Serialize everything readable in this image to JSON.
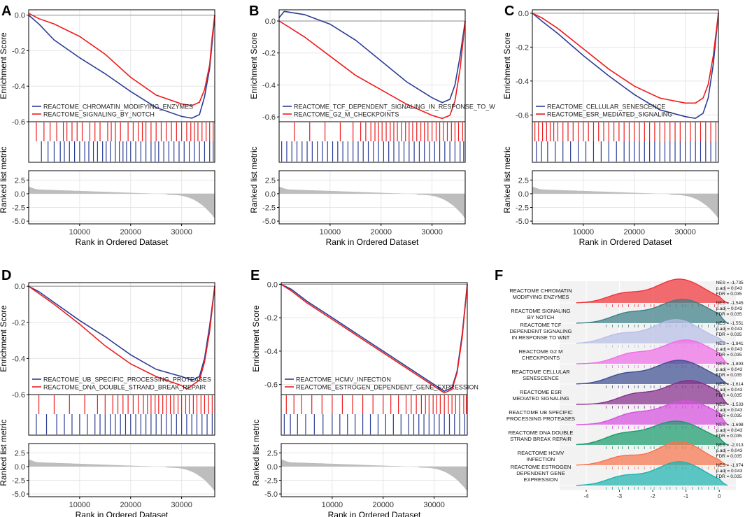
{
  "figure": {
    "colors": {
      "red": "#ee1c1c",
      "blue": "#2b3d96",
      "grid": "#e6e6e6",
      "metric": "#bdbdbd",
      "zero": "#a0a0a0"
    }
  },
  "chart_data": [
    {
      "panel": "A",
      "type": "line",
      "ylabel": "Enrichment Score",
      "xlabel": "Rank in Ordered Dataset",
      "metric_ylabel": "Ranked list metric",
      "ylim": [
        -0.6,
        0.03
      ],
      "yticks": [
        0.0,
        -0.2,
        -0.4,
        -0.6
      ],
      "ytick_labels": [
        "0.0",
        "-0.2",
        "-0.4",
        "-0.6"
      ],
      "xlim": [
        0,
        36500
      ],
      "xticks": [
        10000,
        20000,
        30000
      ],
      "xtick_labels": [
        "10000",
        "20000",
        "30000"
      ],
      "metric_yticks": [
        2.5,
        0.0,
        -2.5,
        -5.0
      ],
      "metric_ytick_labels": [
        "2.5",
        "0.0",
        "-2.5",
        "-5.0"
      ],
      "series": [
        {
          "name": "REACTOME_CHROMATIN_MODIFYING_ENZYMES",
          "color": "blue",
          "x": [
            0,
            2000,
            5000,
            10000,
            15000,
            20000,
            25000,
            30000,
            32000,
            33500,
            34500,
            35500,
            36000,
            36500
          ],
          "y": [
            0.0,
            -0.05,
            -0.14,
            -0.24,
            -0.33,
            -0.43,
            -0.52,
            -0.57,
            -0.58,
            -0.56,
            -0.46,
            -0.3,
            -0.15,
            0.0
          ]
        },
        {
          "name": "REACTOME_SIGNALING_BY_NOTCH",
          "color": "red",
          "x": [
            0,
            2000,
            5000,
            10000,
            15000,
            20000,
            25000,
            30000,
            32000,
            33500,
            34500,
            35500,
            36000,
            36500
          ],
          "y": [
            0.01,
            -0.02,
            -0.05,
            -0.12,
            -0.22,
            -0.35,
            -0.45,
            -0.5,
            -0.51,
            -0.49,
            -0.42,
            -0.28,
            -0.12,
            0.0
          ]
        }
      ],
      "hits_red": [
        1500,
        3000,
        4200,
        5500,
        6800,
        7500,
        8500,
        9500,
        10500,
        12000,
        13000,
        14000,
        15500,
        16200,
        17000,
        18000,
        19500,
        20500,
        21500,
        22300,
        23000,
        24000,
        25000,
        26000,
        27000,
        28000,
        29000,
        30000,
        31000,
        31800,
        32500,
        33200,
        34000,
        34800,
        35500,
        36200
      ],
      "hits_blue": [
        2500,
        3800,
        5000,
        6200,
        7000,
        8000,
        9000,
        10000,
        11000,
        11800,
        12700,
        13500,
        14500,
        15200,
        16000,
        17000,
        17800,
        18500,
        19200,
        20000,
        21000,
        22000,
        23000,
        24000,
        24800,
        25500,
        26500,
        27500,
        28500,
        29500,
        30500,
        31500,
        32500,
        33500,
        34500,
        35500,
        36200
      ]
    },
    {
      "panel": "B",
      "type": "line",
      "ylabel": "Enrichment Score",
      "xlabel": "Rank in Ordered Dataset",
      "metric_ylabel": "Ranked list metric",
      "ylim": [
        -0.63,
        0.07
      ],
      "yticks": [
        0.0,
        -0.2,
        -0.4,
        -0.6
      ],
      "ytick_labels": [
        "0.0",
        "-0.2",
        "-0.4",
        "-0.6"
      ],
      "xlim": [
        0,
        36500
      ],
      "xticks": [
        10000,
        20000,
        30000
      ],
      "xtick_labels": [
        "10000",
        "20000",
        "30000"
      ],
      "metric_yticks": [
        2.5,
        0.0,
        -2.5,
        -5.0
      ],
      "metric_ytick_labels": [
        "2.5",
        "0.0",
        "-2.5",
        "-5.0"
      ],
      "series": [
        {
          "name": "REACTOME_TCF_DEPENDENT_SIGNALING_IN_RESPONSE_TO_W",
          "color": "blue",
          "x": [
            0,
            1000,
            5000,
            10000,
            15000,
            20000,
            25000,
            30000,
            32000,
            33500,
            34500,
            35500,
            36500
          ],
          "y": [
            0.02,
            0.06,
            0.04,
            -0.02,
            -0.12,
            -0.25,
            -0.38,
            -0.48,
            -0.51,
            -0.49,
            -0.4,
            -0.22,
            0.0
          ]
        },
        {
          "name": "REACTOME_G2_M_CHECKPOINTS",
          "color": "red",
          "x": [
            0,
            2000,
            5000,
            10000,
            15000,
            20000,
            25000,
            30000,
            32000,
            33500,
            34500,
            35500,
            36500
          ],
          "y": [
            0.0,
            -0.04,
            -0.1,
            -0.22,
            -0.34,
            -0.43,
            -0.52,
            -0.59,
            -0.61,
            -0.59,
            -0.5,
            -0.3,
            0.0
          ]
        }
      ],
      "hits_red": [
        3000,
        6000,
        9000,
        12000,
        14500,
        16000,
        17000,
        18000,
        18800,
        19500,
        20200,
        21000,
        21800,
        22500,
        23200,
        24000,
        24800,
        25500,
        26200,
        27000,
        27800,
        28500,
        29200,
        30000,
        30800,
        31500,
        32200,
        33000,
        33800,
        34500,
        35200,
        36000
      ],
      "hits_blue": [
        500,
        1500,
        2500,
        3500,
        4500,
        5500,
        6500,
        7500,
        8500,
        9500,
        10500,
        11500,
        12500,
        13500,
        14500,
        15500,
        16500,
        17500,
        18500,
        19500,
        20500,
        21500,
        22500,
        23500,
        24500,
        25500,
        26500,
        27500,
        28500,
        29500,
        30500,
        31500,
        32500,
        33500,
        34500,
        35500,
        36200
      ]
    },
    {
      "panel": "C",
      "type": "line",
      "ylabel": "Enrichment Score",
      "xlabel": "Rank in Ordered Dataset",
      "metric_ylabel": "Ranked list metric",
      "ylim": [
        -0.64,
        0.02
      ],
      "yticks": [
        0.0,
        -0.2,
        -0.4,
        -0.6
      ],
      "ytick_labels": [
        "0.0",
        "-0.2",
        "-0.4",
        "-0.6"
      ],
      "xlim": [
        0,
        36500
      ],
      "xticks": [
        10000,
        20000,
        30000
      ],
      "xtick_labels": [
        "10000",
        "20000",
        "30000"
      ],
      "metric_yticks": [
        2.5,
        0.0,
        -2.5,
        -5.0
      ],
      "metric_ytick_labels": [
        "2.5",
        "0.0",
        "-2.5",
        "-5.0"
      ],
      "series": [
        {
          "name": "REACTOME_CELLULAR_SENESCENCE",
          "color": "blue",
          "x": [
            0,
            2000,
            5000,
            10000,
            15000,
            20000,
            25000,
            30000,
            32000,
            33500,
            34500,
            35500,
            36500
          ],
          "y": [
            0.0,
            -0.05,
            -0.12,
            -0.25,
            -0.37,
            -0.48,
            -0.57,
            -0.61,
            -0.62,
            -0.59,
            -0.5,
            -0.3,
            0.0
          ]
        },
        {
          "name": "REACTOME_ESR_MEDIATED_SIGNALING",
          "color": "red",
          "x": [
            0,
            2000,
            5000,
            10000,
            15000,
            20000,
            25000,
            30000,
            32000,
            33500,
            34500,
            35500,
            36500
          ],
          "y": [
            0.0,
            -0.03,
            -0.09,
            -0.21,
            -0.33,
            -0.43,
            -0.5,
            -0.53,
            -0.53,
            -0.5,
            -0.42,
            -0.25,
            0.0
          ]
        }
      ],
      "hits_red": [
        500,
        1200,
        2000,
        2800,
        3500,
        4200,
        5000,
        6000,
        7000,
        8000,
        9000,
        10000,
        11000,
        12000,
        13000,
        14000,
        15000,
        16000,
        17000,
        18000,
        19000,
        20000,
        21000,
        22000,
        23000,
        24000,
        25000,
        26000,
        27000,
        28000,
        29000,
        30000,
        31000,
        32000,
        33000,
        34000,
        35000,
        36000
      ],
      "hits_blue": [
        800,
        1800,
        3000,
        4500,
        6000,
        7500,
        9000,
        10500,
        12000,
        13500,
        15000,
        16500,
        18000,
        19000,
        20000,
        21000,
        22000,
        23000,
        24000,
        25000,
        26000,
        27000,
        28000,
        29000,
        30000,
        31000,
        32000,
        33000,
        34000,
        35000,
        36000
      ]
    },
    {
      "panel": "D",
      "type": "line",
      "ylabel": "Enrichment Score",
      "xlabel": "Rank in Ordered Dataset",
      "metric_ylabel": "Ranked list metric",
      "ylim": [
        -0.6,
        0.02
      ],
      "yticks": [
        0.0,
        -0.2,
        -0.4,
        -0.6
      ],
      "ytick_labels": [
        "0.0",
        "-0.2",
        "-0.4",
        "-0.6"
      ],
      "xlim": [
        0,
        36500
      ],
      "xticks": [
        10000,
        20000,
        30000
      ],
      "xtick_labels": [
        "10000",
        "20000",
        "30000"
      ],
      "metric_yticks": [
        2.5,
        0.0,
        -2.5,
        -5.0
      ],
      "metric_ytick_labels": [
        "2.5",
        "0.0",
        "-2.5",
        "-5.0"
      ],
      "series": [
        {
          "name": "REACTOME_UB_SPECIFIC_PROCESSING_PROTEASES",
          "color": "blue",
          "x": [
            0,
            2000,
            5000,
            10000,
            15000,
            20000,
            25000,
            30000,
            32000,
            33500,
            34500,
            35500,
            36500
          ],
          "y": [
            0.0,
            -0.03,
            -0.09,
            -0.19,
            -0.28,
            -0.38,
            -0.46,
            -0.5,
            -0.52,
            -0.5,
            -0.4,
            -0.22,
            0.0
          ]
        },
        {
          "name": "REACTOME_DNA_DOUBLE_STRAND_BREAK_REPAIR",
          "color": "red",
          "x": [
            0,
            2000,
            5000,
            10000,
            15000,
            20000,
            25000,
            30000,
            31000,
            33500,
            34500,
            35500,
            36500
          ],
          "y": [
            0.0,
            -0.04,
            -0.1,
            -0.21,
            -0.33,
            -0.43,
            -0.5,
            -0.55,
            -0.57,
            -0.52,
            -0.42,
            -0.25,
            0.0
          ]
        }
      ],
      "hits_red": [
        2000,
        5000,
        8000,
        11000,
        13500,
        15000,
        16500,
        17500,
        18500,
        19500,
        20500,
        21500,
        22500,
        23300,
        24000,
        24800,
        25500,
        26300,
        27000,
        27800,
        28500,
        29300,
        30000,
        30800,
        31500,
        32300,
        33000,
        33800,
        34500,
        35300,
        36000
      ],
      "hits_blue": [
        1500,
        3500,
        5500,
        7000,
        8500,
        10000,
        11500,
        13000,
        14000,
        15000,
        16000,
        17000,
        18000,
        19000,
        20000,
        21000,
        22000,
        23000,
        24000,
        25000,
        26000,
        27000,
        28000,
        29000,
        30000,
        31000,
        32000,
        33000,
        34000,
        35000,
        36000
      ]
    },
    {
      "panel": "E",
      "type": "line",
      "ylabel": "Enrichment Score",
      "xlabel": "Rank in Ordered Dataset",
      "metric_ylabel": "Ranked list metric",
      "ylim": [
        -0.66,
        0.01
      ],
      "yticks": [
        0.0,
        -0.2,
        -0.4,
        -0.6
      ],
      "ytick_labels": [
        "0.0",
        "-0.2",
        "-0.4",
        "-0.6"
      ],
      "xlim": [
        0,
        36500
      ],
      "xticks": [
        10000,
        20000,
        30000
      ],
      "xtick_labels": [
        "10000",
        "20000",
        "30000"
      ],
      "metric_yticks": [
        2.5,
        0.0,
        -2.5,
        -5.0
      ],
      "metric_ytick_labels": [
        "2.5",
        "0.0",
        "-2.5",
        "-5.0"
      ],
      "series": [
        {
          "name": "REACTOME_HCMV_INFECTION",
          "color": "blue",
          "x": [
            0,
            2000,
            5000,
            10000,
            15000,
            20000,
            25000,
            30000,
            32000,
            33500,
            34500,
            35500,
            36500
          ],
          "y": [
            0.0,
            -0.03,
            -0.1,
            -0.2,
            -0.3,
            -0.4,
            -0.5,
            -0.6,
            -0.64,
            -0.62,
            -0.52,
            -0.3,
            0.0
          ]
        },
        {
          "name": "REACTOME_ESTROGEN_DEPENDENT_GENE_EXPRESSION",
          "color": "red",
          "x": [
            0,
            2000,
            5000,
            10000,
            15000,
            20000,
            25000,
            30000,
            32000,
            33500,
            34500,
            35500,
            36500
          ],
          "y": [
            0.0,
            -0.04,
            -0.11,
            -0.21,
            -0.31,
            -0.41,
            -0.51,
            -0.61,
            -0.65,
            -0.63,
            -0.53,
            -0.32,
            0.0
          ]
        }
      ],
      "hits_red": [
        1000,
        2500,
        4000,
        6000,
        8000,
        10000,
        12000,
        14000,
        16000,
        18000,
        20000,
        21500,
        23000,
        24500,
        25500,
        26500,
        27500,
        28300,
        29000,
        29800,
        30500,
        31200,
        32000,
        32800,
        33500,
        34200,
        35000,
        35800,
        36300
      ],
      "hits_blue": [
        600,
        1800,
        3200,
        4800,
        6500,
        8200,
        10000,
        11500,
        13000,
        14500,
        16000,
        17500,
        19000,
        20500,
        22000,
        23500,
        25000,
        26000,
        27000,
        28000,
        29000,
        30000,
        31000,
        32000,
        33000,
        34000,
        35000,
        36000
      ]
    },
    {
      "panel": "F",
      "type": "ridgeline",
      "xlim": [
        -4.8,
        0.5
      ],
      "xticks": [
        -4,
        -3,
        -2,
        -1,
        0
      ],
      "xtick_labels": [
        "-4",
        "-3",
        "-2",
        "-1",
        "0"
      ],
      "ridges": [
        {
          "label": [
            "REACTOME CHROMATIN",
            "MODIFYING ENZYMES"
          ],
          "nes": "NES = -1.735",
          "padj": "p.adj = 0.043",
          "fdr": "FDR = 0.035",
          "color": "#f0343a",
          "peak": -1.2,
          "spread": 0.75
        },
        {
          "label": [
            "REACTOME SIGNALING",
            "BY NOTCH"
          ],
          "nes": "NES = -1.545",
          "padj": "p.adj = 0.043",
          "fdr": "FDR = 0.035",
          "color": "#3d7f86",
          "peak": -1.1,
          "spread": 0.8
        },
        {
          "label": [
            "REACTOME TCF",
            "DEPENDENT SIGNALING",
            "IN RESPONSE TO WNT"
          ],
          "nes": "NES = -1.551",
          "padj": "p.adj = 0.043",
          "fdr": "FDR = 0.035",
          "color": "#b7bfe6",
          "peak": -1.3,
          "spread": 0.75
        },
        {
          "label": [
            "REACTOME G2 M",
            "CHECKPOINTS"
          ],
          "nes": "NES = -1.841",
          "padj": "p.adj = 0.043",
          "fdr": "FDR = 0.035",
          "color": "#ef6ee6",
          "peak": -1.0,
          "spread": 0.8
        },
        {
          "label": [
            "REACTOME CELLULAR",
            "SENESCENCE"
          ],
          "nes": "NES = -1.893",
          "padj": "p.adj = 0.043",
          "fdr": "FDR = 0.035",
          "color": "#3e4f92",
          "peak": -1.2,
          "spread": 0.8
        },
        {
          "label": [
            "REACTOME ESR",
            "MEDIATED SIGNALING"
          ],
          "nes": "NES = -1.614",
          "padj": "p.adj = 0.043",
          "fdr": "FDR = 0.035",
          "color": "#872f8c",
          "peak": -0.9,
          "spread": 0.8
        },
        {
          "label": [
            "REACTOME UB SPECIFIC",
            "PROCESSING PROTEASES"
          ],
          "nes": "NES = -1.533",
          "padj": "p.adj = 0.043",
          "fdr": "FDR = 0.035",
          "color": "#d651de",
          "peak": -1.0,
          "spread": 0.85
        },
        {
          "label": [
            "REACTOME DNA DOUBLE",
            "STRAND BREAK REPAIR"
          ],
          "nes": "NES = -1.698",
          "padj": "p.adj = 0.043",
          "fdr": "FDR = 0.035",
          "color": "#1a9b6c",
          "peak": -1.3,
          "spread": 0.85
        },
        {
          "label": [
            "REACTOME HCMV",
            "INFECTION"
          ],
          "nes": "NES = -2.013",
          "padj": "p.adj = 0.043",
          "fdr": "FDR = 0.035",
          "color": "#f7744e",
          "peak": -1.2,
          "spread": 0.7
        },
        {
          "label": [
            "REACTOME ESTROGEN",
            "DEPENDENT GENE",
            "EXPRESSION"
          ],
          "nes": "NES = -1.974",
          "padj": "p.adj = 0.043",
          "fdr": "FDR = 0.035",
          "color": "#1fb3ae",
          "peak": -1.2,
          "spread": 0.75
        }
      ]
    }
  ]
}
